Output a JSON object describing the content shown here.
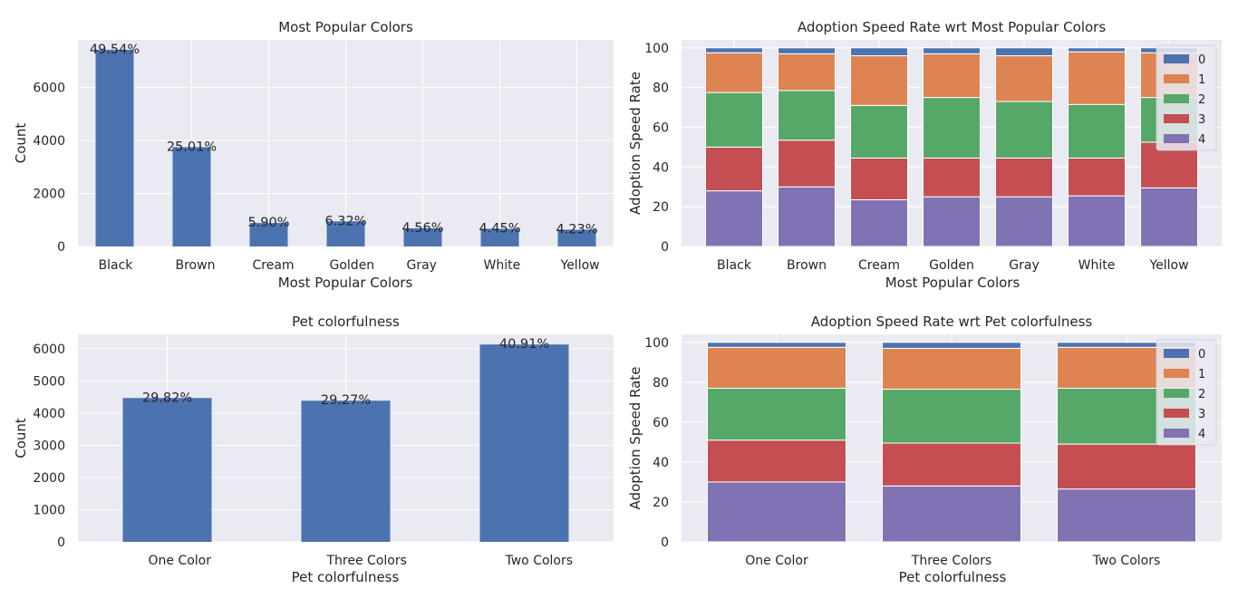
{
  "colors": {
    "background": "#eaeaf2",
    "grid": "#ffffff",
    "bar": "#4c72b0",
    "stack": [
      "#4c72b0",
      "#dd8452",
      "#55a868",
      "#c44e52",
      "#8172b3"
    ]
  },
  "chart_data": [
    {
      "type": "bar",
      "title": "Most Popular Colors",
      "xlabel": "Most Popular Colors",
      "ylabel": "Count",
      "categories": [
        "Black",
        "Brown",
        "Cream",
        "Golden",
        "Gray",
        "White",
        "Yellow"
      ],
      "values": [
        7427,
        3750,
        885,
        948,
        684,
        667,
        634
      ],
      "labels": [
        "49.54%",
        "25.01%",
        "5.90%",
        "6.32%",
        "4.56%",
        "4.45%",
        "4.23%"
      ],
      "ylim": [
        0,
        7800
      ],
      "yticks": [
        0,
        2000,
        4000,
        6000
      ],
      "grid": true
    },
    {
      "type": "bar",
      "stacked": true,
      "title": "Adoption Speed Rate wrt Most Popular Colors",
      "xlabel": "Most Popular Colors",
      "ylabel": "Adoption Speed Rate",
      "categories": [
        "Black",
        "Brown",
        "Cream",
        "Golden",
        "Gray",
        "White",
        "Yellow"
      ],
      "series": [
        {
          "name": "0",
          "values": [
            2.5,
            3.0,
            4.0,
            3.0,
            4.0,
            2.0,
            2.5
          ]
        },
        {
          "name": "1",
          "values": [
            20.0,
            18.5,
            25.0,
            22.0,
            23.0,
            26.5,
            22.5
          ]
        },
        {
          "name": "2",
          "values": [
            27.5,
            25.0,
            26.5,
            30.5,
            28.5,
            27.0,
            22.5
          ]
        },
        {
          "name": "3",
          "values": [
            22.0,
            23.5,
            21.0,
            19.5,
            19.5,
            19.0,
            23.0
          ]
        },
        {
          "name": "4",
          "values": [
            28.0,
            30.0,
            23.5,
            25.0,
            25.0,
            25.5,
            29.5
          ]
        }
      ],
      "ylim": [
        0,
        104
      ],
      "yticks": [
        0,
        20,
        40,
        60,
        80,
        100
      ],
      "legend": "top-right",
      "legend_order": [
        "0",
        "1",
        "2",
        "3",
        "4"
      ],
      "grid": true
    },
    {
      "type": "bar",
      "title": "Pet colorfulness",
      "xlabel": "Pet colorfulness",
      "ylabel": "Count",
      "categories": [
        "One Color",
        "Three Colors",
        "Two Colors"
      ],
      "values": [
        4471,
        4388,
        6134
      ],
      "labels": [
        "29.82%",
        "29.27%",
        "40.91%"
      ],
      "ylim": [
        0,
        6450
      ],
      "yticks": [
        0,
        1000,
        2000,
        3000,
        4000,
        5000,
        6000
      ],
      "grid": true
    },
    {
      "type": "bar",
      "stacked": true,
      "title": "Adoption Speed Rate wrt Pet colorfulness",
      "xlabel": "Pet colorfulness",
      "ylabel": "Adoption Speed Rate",
      "categories": [
        "One Color",
        "Three Colors",
        "Two Colors"
      ],
      "series": [
        {
          "name": "0",
          "values": [
            2.5,
            3.0,
            2.5
          ]
        },
        {
          "name": "1",
          "values": [
            20.5,
            20.5,
            20.5
          ]
        },
        {
          "name": "2",
          "values": [
            26.0,
            27.0,
            28.0
          ]
        },
        {
          "name": "3",
          "values": [
            21.0,
            21.5,
            22.5
          ]
        },
        {
          "name": "4",
          "values": [
            30.0,
            28.0,
            26.5
          ]
        }
      ],
      "ylim": [
        0,
        104
      ],
      "yticks": [
        0,
        20,
        40,
        60,
        80,
        100
      ],
      "legend": "top-right",
      "legend_order": [
        "0",
        "1",
        "2",
        "3",
        "4"
      ],
      "grid": true
    }
  ]
}
